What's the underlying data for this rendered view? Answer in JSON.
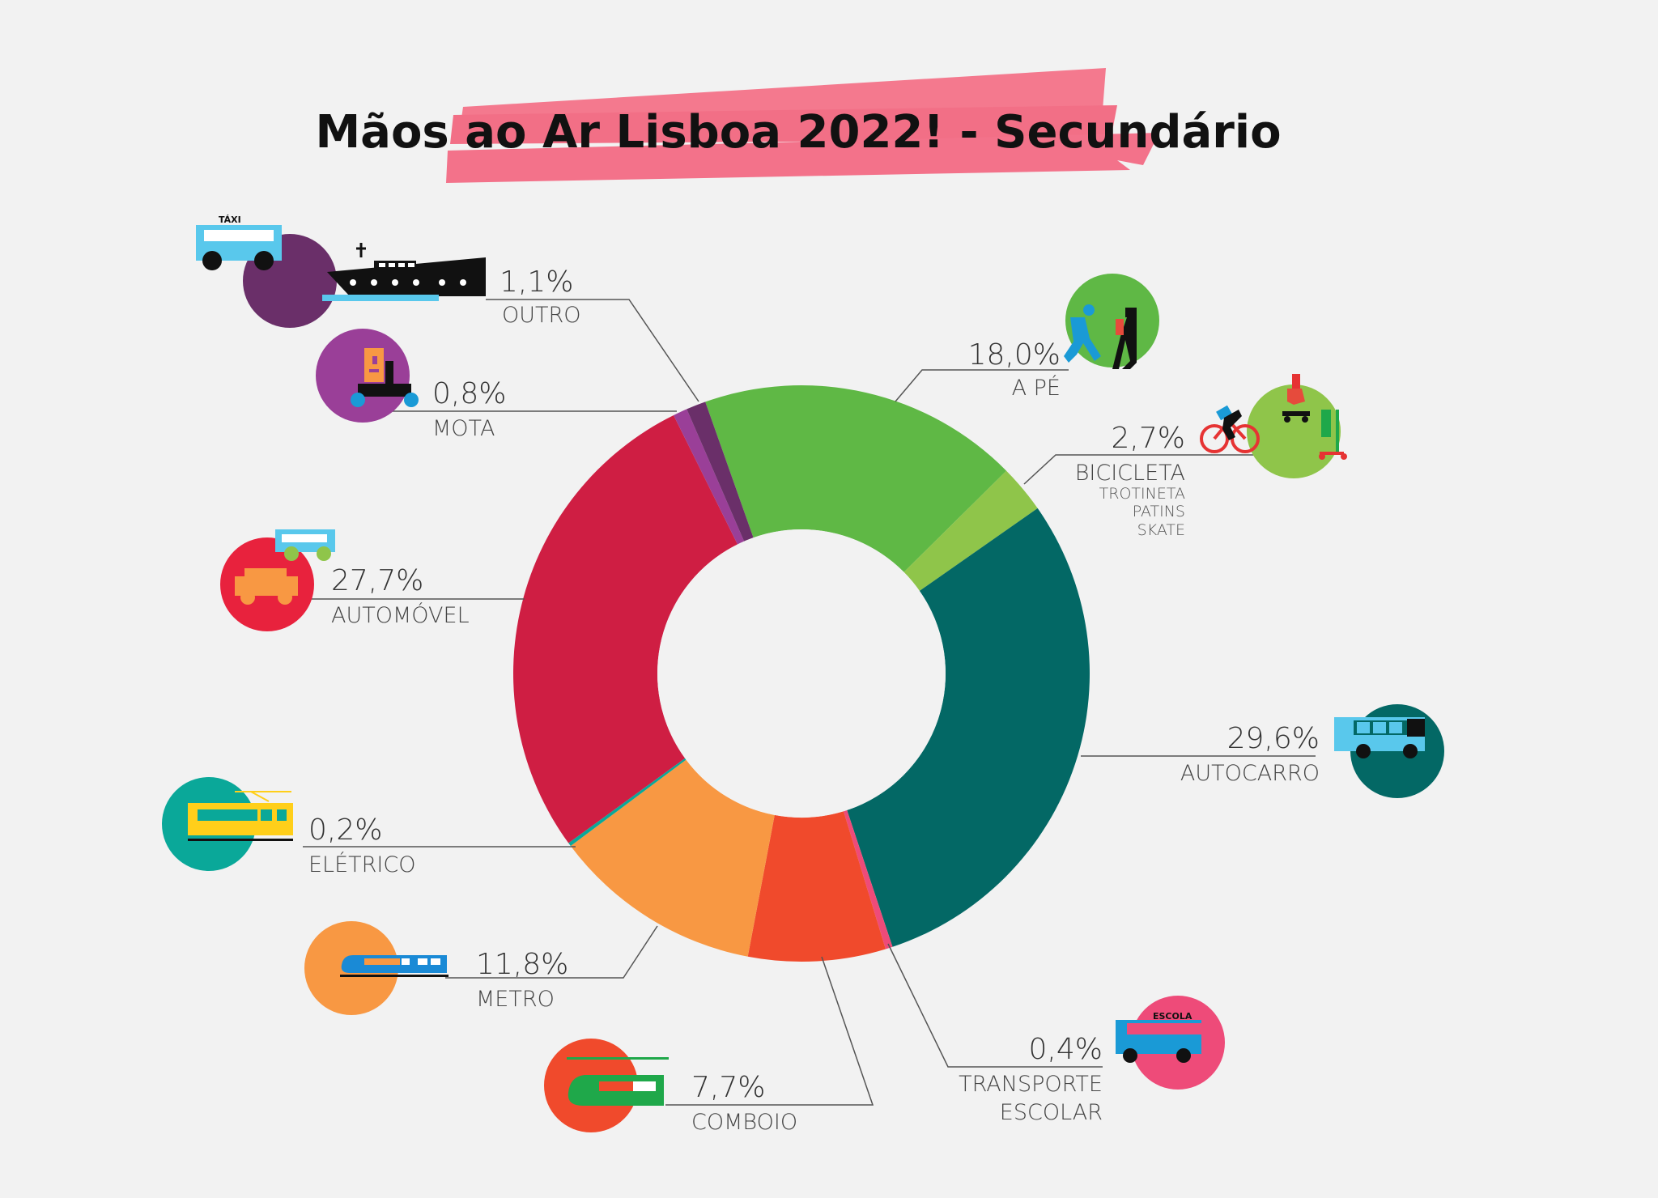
{
  "title": "Mãos ao Ar Lisboa 2022! - Secundário",
  "colors": {
    "background": "#f2f2f2",
    "title_brush": "#f26f86"
  },
  "chart_data": {
    "type": "pie",
    "donut": true,
    "title": "Mãos ao Ar Lisboa 2022! - Secundário",
    "unit": "%",
    "slices": [
      {
        "key": "a_pe",
        "label": "A PÉ",
        "sublabels": [],
        "value": 18.0,
        "value_text": "18,0%",
        "color": "#5fb845",
        "icon": "walking-icon"
      },
      {
        "key": "bicicleta",
        "label": "BICICLETA",
        "sublabels": [
          "TROTINETA",
          "PATINS",
          "SKATE"
        ],
        "value": 2.7,
        "value_text": "2,7%",
        "color": "#8fc54a",
        "icon": "bicycle-icon"
      },
      {
        "key": "autocarro",
        "label": "AUTOCARRO",
        "sublabels": [],
        "value": 29.6,
        "value_text": "29,6%",
        "color": "#036865",
        "icon": "bus-icon"
      },
      {
        "key": "transporte_escolar",
        "label": "TRANSPORTE",
        "sublabels": [
          "ESCOLAR"
        ],
        "value": 0.4,
        "value_text": "0,4%",
        "color": "#ee4b79",
        "icon": "school-bus-icon",
        "icon_text": "ESCOLA"
      },
      {
        "key": "comboio",
        "label": "COMBOIO",
        "sublabels": [],
        "value": 7.7,
        "value_text": "7,7%",
        "color": "#f04a2c",
        "icon": "train-icon"
      },
      {
        "key": "metro",
        "label": "METRO",
        "sublabels": [],
        "value": 11.8,
        "value_text": "11,8%",
        "color": "#f89843",
        "icon": "metro-icon"
      },
      {
        "key": "eletrico",
        "label": "ELÉTRICO",
        "sublabels": [],
        "value": 0.2,
        "value_text": "0,2%",
        "color": "#0aa899",
        "icon": "tram-icon"
      },
      {
        "key": "automovel",
        "label": "AUTOMÓVEL",
        "sublabels": [],
        "value": 27.7,
        "value_text": "27,7%",
        "color": "#cf1e43",
        "icon": "car-icon"
      },
      {
        "key": "mota",
        "label": "MOTA",
        "sublabels": [],
        "value": 0.8,
        "value_text": "0,8%",
        "color": "#9a3f98",
        "icon": "motorbike-icon"
      },
      {
        "key": "outro",
        "label": "OUTRO",
        "sublabels": [],
        "value": 1.1,
        "value_text": "1,1%",
        "color": "#6a2f69",
        "icon": "taxi-boat-icon",
        "icon_text": "TÁXI"
      }
    ]
  }
}
